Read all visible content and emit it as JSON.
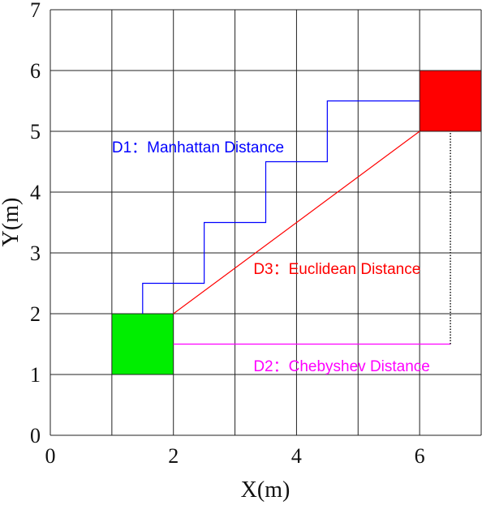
{
  "chart_data": {
    "type": "line",
    "xlabel": "X(m)",
    "ylabel": "Y(m)",
    "xlim": [
      0,
      7
    ],
    "ylim": [
      0,
      7
    ],
    "x_ticks": [
      "0",
      "2",
      "4",
      "6"
    ],
    "y_ticks": [
      "0",
      "1",
      "2",
      "3",
      "4",
      "5",
      "6",
      "7"
    ],
    "grid": true,
    "cells": [
      {
        "x": [
          1,
          2
        ],
        "y": [
          1,
          2
        ],
        "color": "#00ee00"
      },
      {
        "x": [
          6,
          7
        ],
        "y": [
          5,
          6
        ],
        "color": "#ff0000"
      }
    ],
    "series": [
      {
        "color": "#0000ff",
        "x": [
          1.5,
          1.5,
          2.5,
          2.5,
          3.5,
          3.5,
          4.5,
          4.5,
          6
        ],
        "y": [
          2,
          2.5,
          2.5,
          3.5,
          3.5,
          4.5,
          4.5,
          5.5,
          5.5
        ]
      },
      {
        "color": "#ff0000",
        "x": [
          2,
          6
        ],
        "y": [
          2,
          5
        ]
      },
      {
        "color": "#ff00ff",
        "x": [
          2,
          6.5
        ],
        "y": [
          1.5,
          1.5
        ]
      },
      {
        "color": "#000000",
        "dashed": true,
        "x": [
          6.5,
          6.5
        ],
        "y": [
          1.5,
          5
        ]
      }
    ],
    "annotations": [
      {
        "text": "D1：Manhattan Distance",
        "x": 1,
        "y": 4.75,
        "color": "#0000ff"
      },
      {
        "text": "D3：Euclidean Distance",
        "x": 3.3,
        "y": 2.75,
        "color": "#ff0000"
      },
      {
        "text": "D2：Chebyshev Distance",
        "x": 3.3,
        "y": 1.15,
        "color": "#ff00ff"
      }
    ]
  }
}
